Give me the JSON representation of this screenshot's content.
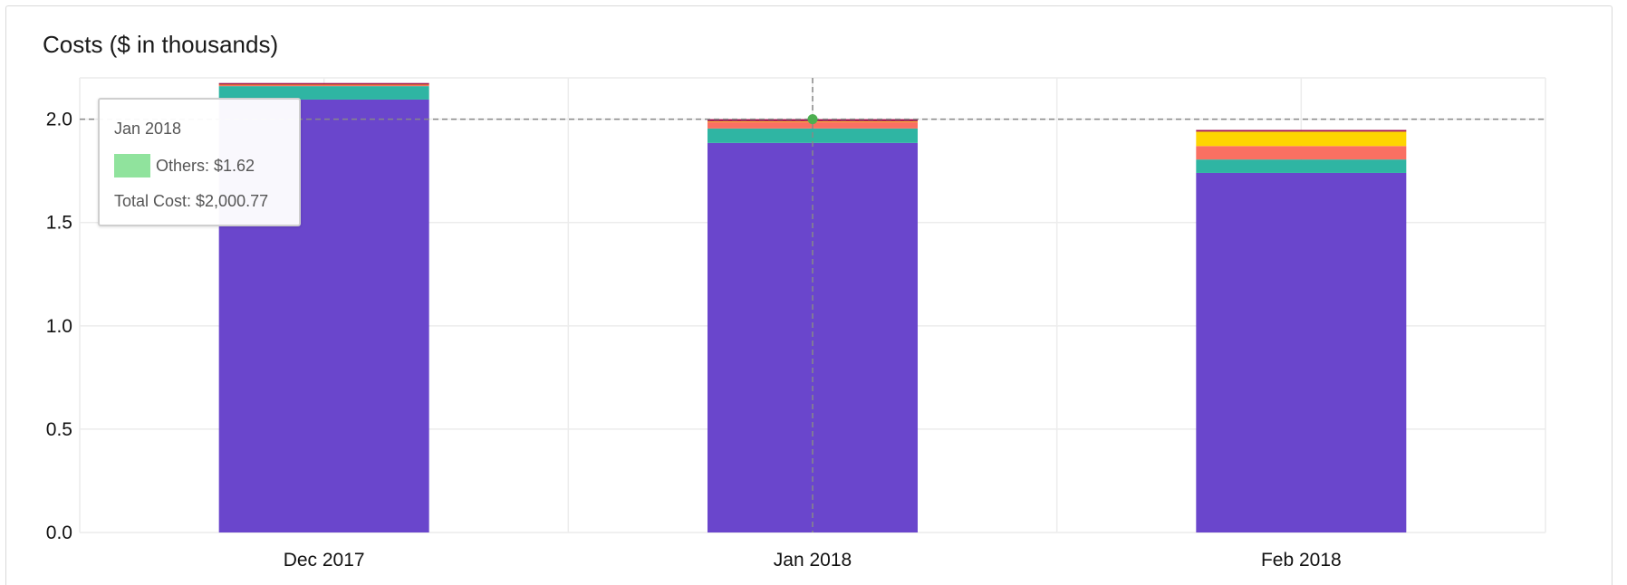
{
  "card": {
    "title": "Costs ($ in thousands)"
  },
  "colors": {
    "purple": "#6a46cc",
    "teal": "#2fb5a3",
    "red": "#fa7062",
    "yellow": "#fed500",
    "maroon": "#a3134f",
    "grid": "#ececec",
    "crosshair": "#888888",
    "others_swatch": "#90e39d"
  },
  "chart_data": {
    "type": "bar",
    "stacked": true,
    "categories": [
      "Dec 2017",
      "Jan 2018",
      "Feb 2018"
    ],
    "ylim": [
      0,
      2.2
    ],
    "yticks": [
      "0.0",
      "0.5",
      "1.0",
      "1.5",
      "2.0"
    ],
    "grid": true,
    "series": [
      {
        "color": "#6a46cc",
        "values": [
          2.095,
          1.885,
          1.74
        ]
      },
      {
        "color": "#2fb5a3",
        "values": [
          0.065,
          0.07,
          0.065
        ]
      },
      {
        "color": "#fa7062",
        "values": [
          0.005,
          0.032,
          0.065
        ]
      },
      {
        "color": "#fed500",
        "values": [
          0.002,
          0.003,
          0.07
        ]
      },
      {
        "color": "#a3134f",
        "values": [
          0.008,
          0.01,
          0.008
        ]
      }
    ],
    "crosshair": {
      "category": "Jan 2018",
      "y": 2.0
    },
    "tooltip": {
      "title": "Jan 2018",
      "series_label": "Others: $1.62",
      "total": "Total Cost: $2,000.77"
    }
  }
}
